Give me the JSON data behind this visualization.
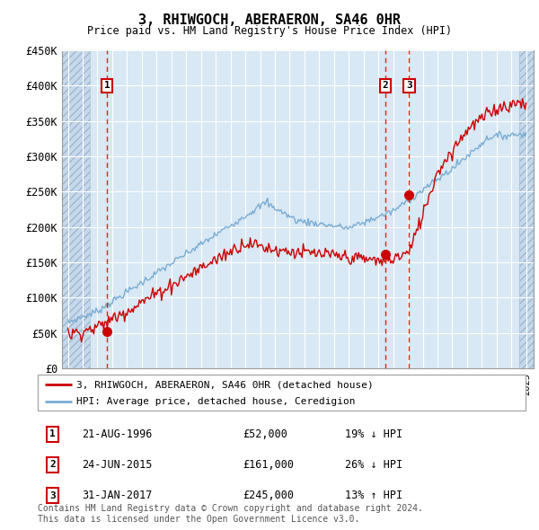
{
  "title": "3, RHIWGOCH, ABERAERON, SA46 0HR",
  "subtitle": "Price paid vs. HM Land Registry's House Price Index (HPI)",
  "ylim": [
    0,
    450000
  ],
  "yticks": [
    0,
    50000,
    100000,
    150000,
    200000,
    250000,
    300000,
    350000,
    400000,
    450000
  ],
  "ytick_labels": [
    "£0",
    "£50K",
    "£100K",
    "£150K",
    "£200K",
    "£250K",
    "£300K",
    "£350K",
    "£400K",
    "£450K"
  ],
  "xlim_start": 1993.6,
  "xlim_end": 2025.5,
  "sale_dates": [
    1996.64,
    2015.48,
    2017.08
  ],
  "sale_prices": [
    52000,
    161000,
    245000
  ],
  "sale_labels": [
    "1",
    "2",
    "3"
  ],
  "hpi_color": "#7aadd4",
  "price_color": "#cc0000",
  "grid_color": "#ffffff",
  "background_plot": "#d8e8f4",
  "legend_label_red": "3, RHIWGOCH, ABERAERON, SA46 0HR (detached house)",
  "legend_label_blue": "HPI: Average price, detached house, Ceredigion",
  "table_rows": [
    [
      "1",
      "21-AUG-1996",
      "£52,000",
      "19% ↓ HPI"
    ],
    [
      "2",
      "24-JUN-2015",
      "£161,000",
      "26% ↓ HPI"
    ],
    [
      "3",
      "31-JAN-2017",
      "£245,000",
      "13% ↑ HPI"
    ]
  ],
  "footnote": "Contains HM Land Registry data © Crown copyright and database right 2024.\nThis data is licensed under the Open Government Licence v3.0.",
  "hatch_end_year": 1995.5,
  "hatch_start_year": 2024.5
}
